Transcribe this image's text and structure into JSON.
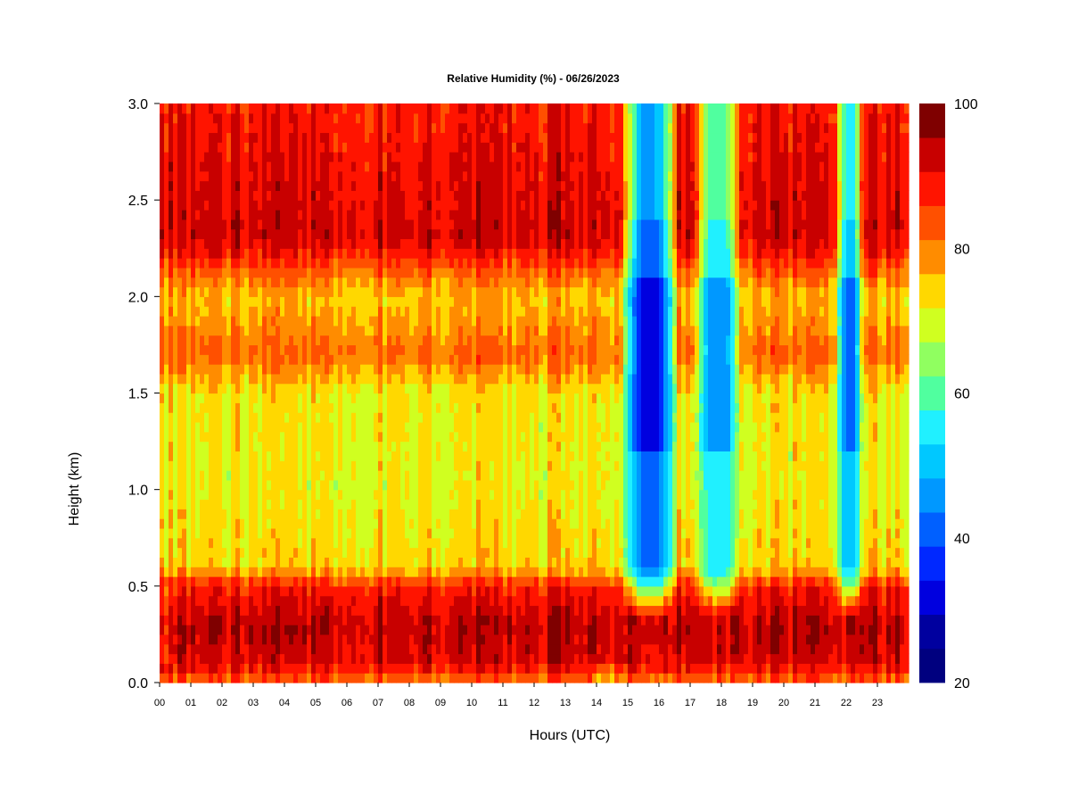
{
  "chart_data": {
    "type": "heatmap",
    "title": "Relative Humidity (%) - 06/26/2023",
    "xlabel": "Hours (UTC)",
    "ylabel": "Height (km)",
    "xlim": [
      0,
      24
    ],
    "ylim": [
      0,
      3.0
    ],
    "x_ticks": [
      "00",
      "01",
      "02",
      "03",
      "04",
      "05",
      "06",
      "07",
      "08",
      "09",
      "10",
      "11",
      "12",
      "13",
      "14",
      "15",
      "16",
      "17",
      "18",
      "19",
      "20",
      "21",
      "22",
      "23"
    ],
    "y_ticks": [
      "0.0",
      "0.5",
      "1.0",
      "1.5",
      "2.0",
      "2.5",
      "3.0"
    ],
    "colorbar": {
      "range": [
        20,
        100
      ],
      "step": 5,
      "tick_labels": [
        "20",
        "40",
        "60",
        "80",
        "100"
      ],
      "colors": [
        "#00007f",
        "#00009f",
        "#0000df",
        "#0028ff",
        "#0060ff",
        "#0098ff",
        "#00c8ff",
        "#20f0ff",
        "#50ff9f",
        "#90ff60",
        "#d0ff20",
        "#ffd800",
        "#ff8c00",
        "#ff5000",
        "#ff1400",
        "#c80000",
        "#7f0000"
      ]
    },
    "height_profiles_km": [
      0.0,
      0.1,
      0.3,
      0.5,
      0.6,
      1.0,
      1.5,
      1.7,
      2.0,
      2.3,
      3.0
    ],
    "base_profile_rh": [
      85,
      96,
      99,
      92,
      78,
      75,
      76,
      86,
      79,
      97,
      93
    ],
    "dry_intrusions": [
      {
        "start_h": 14.5,
        "end_h": 16.3,
        "min_rh": 32,
        "core_h": 15.7
      },
      {
        "start_h": 17.1,
        "end_h": 18.6,
        "min_rh": 45,
        "core_h": 17.9
      },
      {
        "start_h": 21.6,
        "end_h": 22.5,
        "min_rh": 42,
        "core_h": 22.1
      }
    ]
  }
}
